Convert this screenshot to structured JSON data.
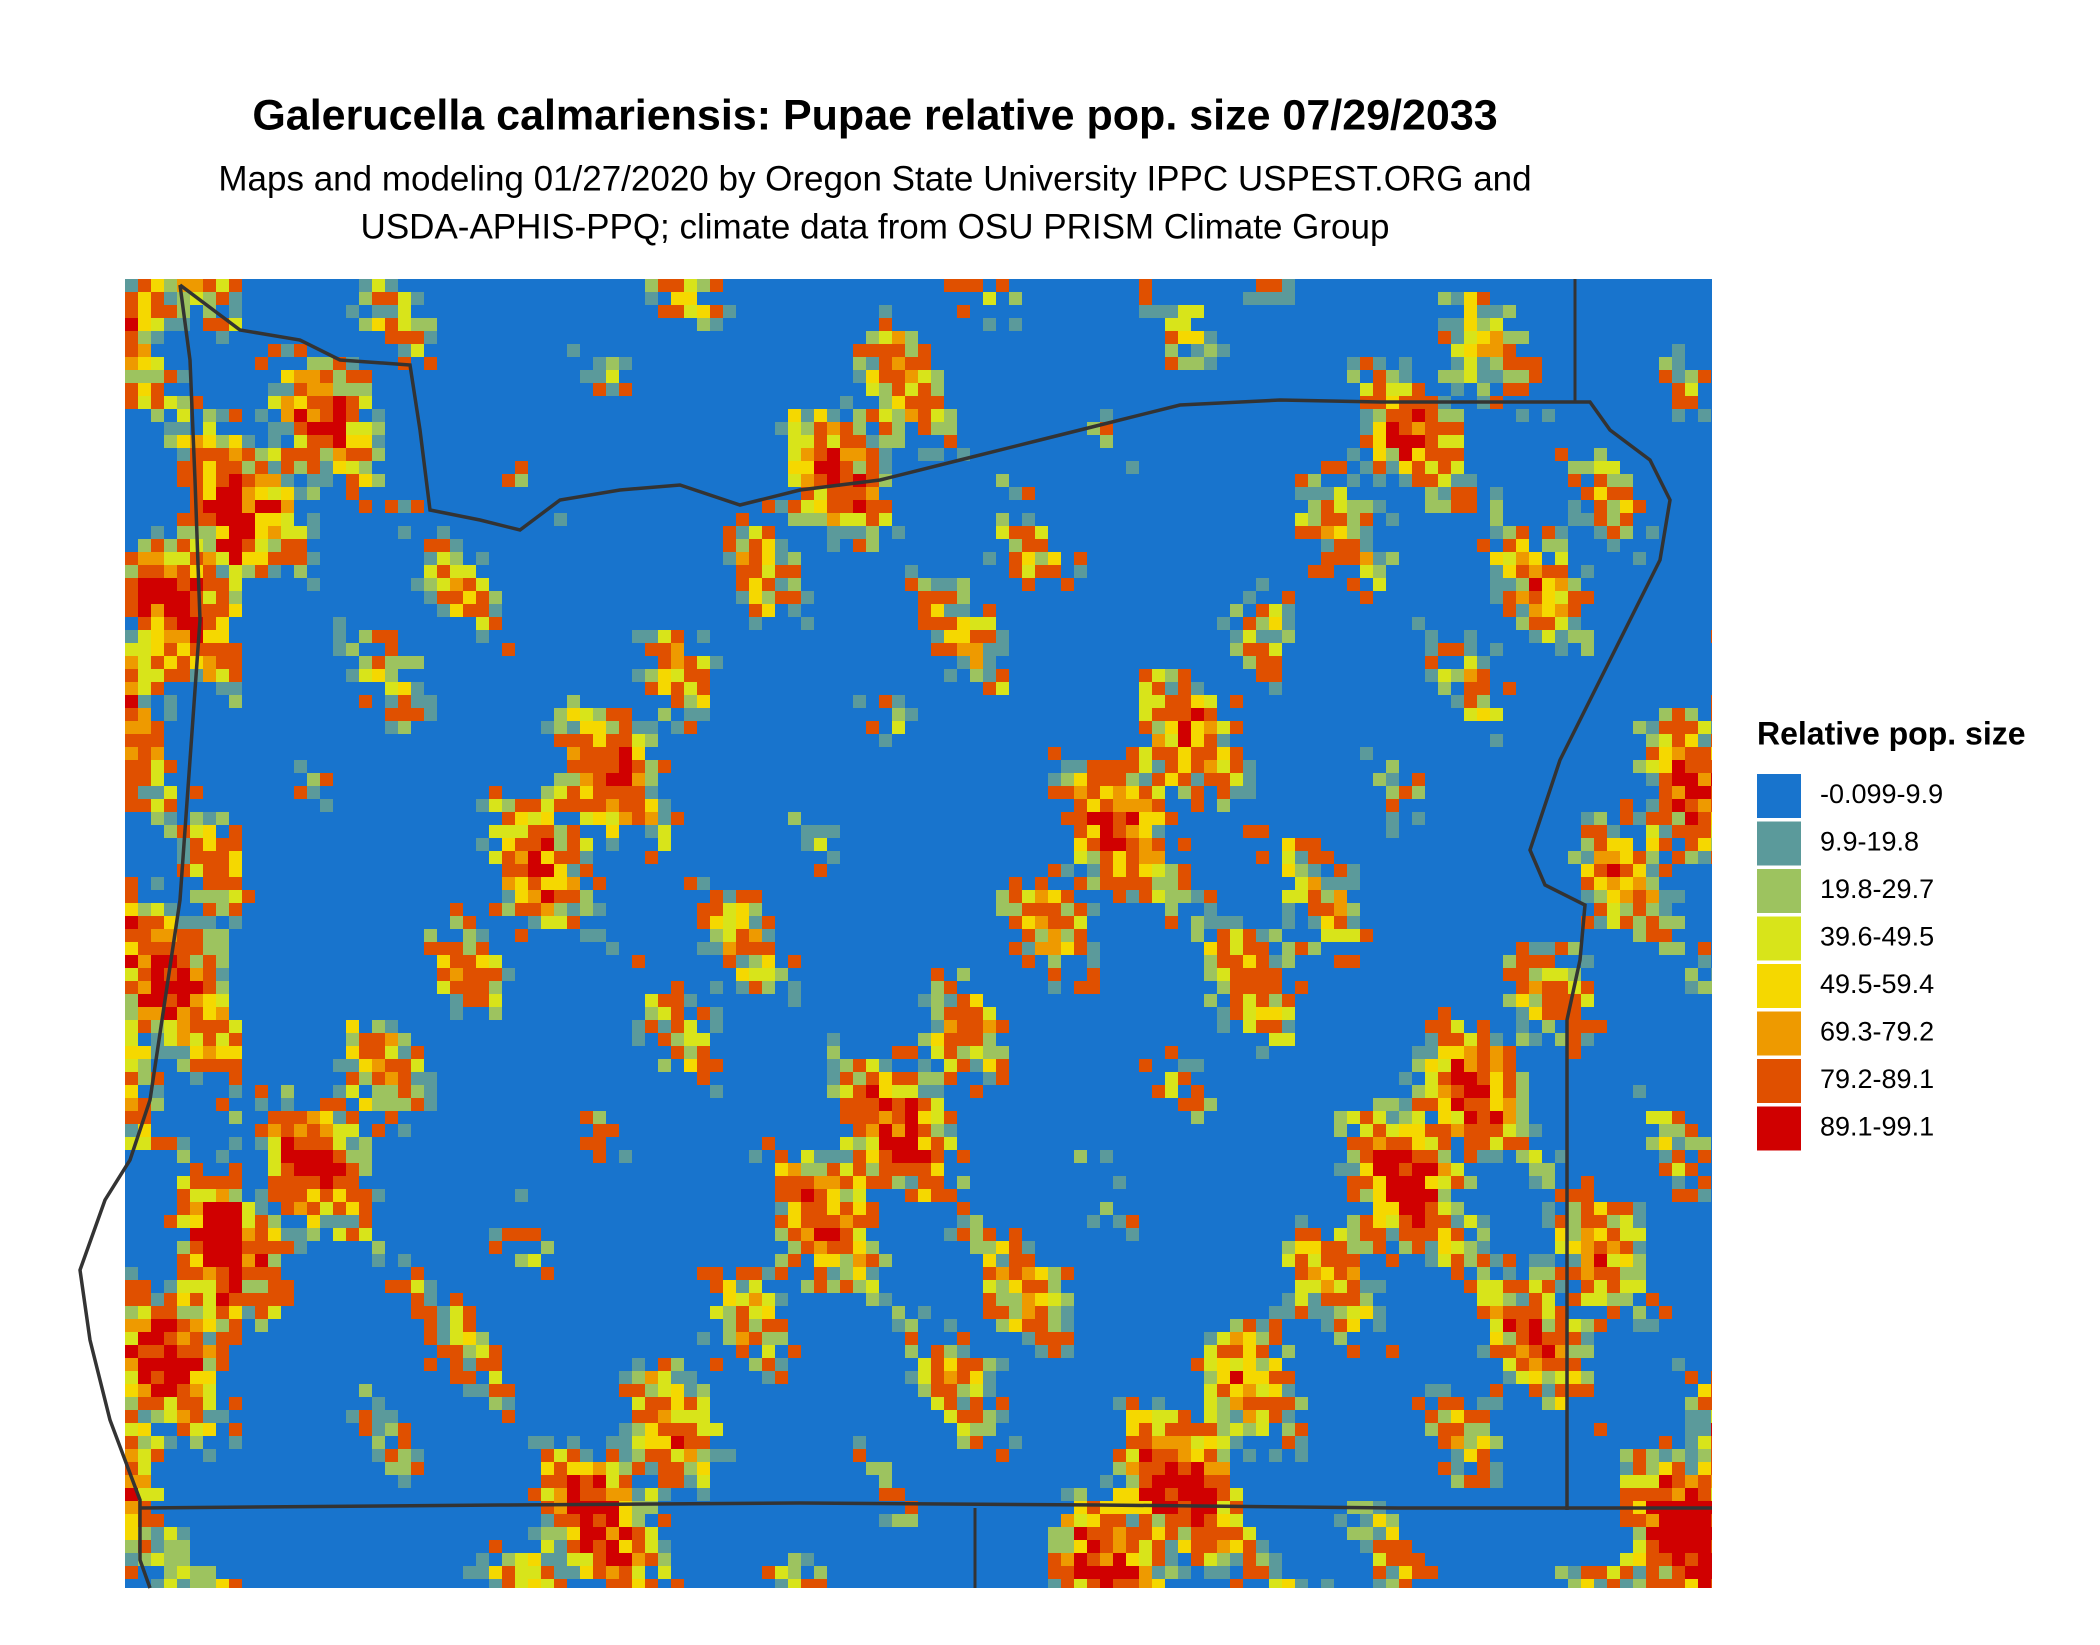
{
  "title": "Galerucella calmariensis: Pupae relative pop. size 07/29/2033",
  "subtitle": [
    "Maps and modeling 01/27/2020 by Oregon State University IPPC USPEST.ORG and",
    "USDA-APHIS-PPQ; climate data from OSU PRISM Climate Group"
  ],
  "legend": {
    "title": "Relative pop. size",
    "items": [
      {
        "label": "-0.099-9.9",
        "color": "#1874cd"
      },
      {
        "label": "9.9-19.8",
        "color": "#5b9a9b"
      },
      {
        "label": "19.8-29.7",
        "color": "#9dc35f"
      },
      {
        "label": "39.6-49.5",
        "color": "#d8e41a"
      },
      {
        "label": "49.5-59.4",
        "color": "#f5d800"
      },
      {
        "label": "69.3-79.2",
        "color": "#ee9a00"
      },
      {
        "label": "79.2-89.1",
        "color": "#e05000"
      },
      {
        "label": "89.1-99.1",
        "color": "#d00000"
      }
    ]
  }
}
